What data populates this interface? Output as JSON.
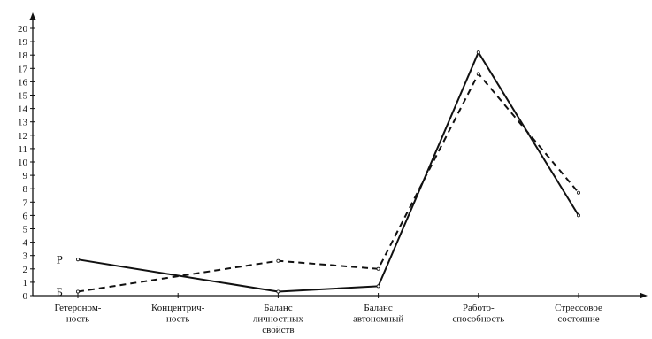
{
  "chart_data": {
    "type": "line",
    "title": "",
    "xlabel": "",
    "ylabel": "",
    "ylim": [
      0,
      20
    ],
    "yticks": [
      0,
      1,
      2,
      3,
      4,
      5,
      6,
      7,
      8,
      9,
      10,
      11,
      12,
      13,
      14,
      15,
      16,
      17,
      18,
      19,
      20
    ],
    "categories": [
      [
        "Гетероном-",
        "ность"
      ],
      [
        "Концентрич-",
        "ность"
      ],
      [
        "Баланс",
        "личностных",
        "свойств"
      ],
      [
        "Баланс",
        "автономный"
      ],
      [
        "Работо-",
        "способность"
      ],
      [
        "Стрессовое",
        "состояние"
      ]
    ],
    "series": [
      {
        "name": "Р",
        "style": "solid",
        "color": "#111111",
        "values": [
          2.7,
          null,
          0.3,
          0.7,
          18.2,
          6.0
        ]
      },
      {
        "name": "Б",
        "style": "dashed",
        "color": "#111111",
        "values": [
          0.3,
          null,
          2.6,
          2.0,
          16.6,
          7.7
        ]
      }
    ],
    "grid": false,
    "legend": "inline-left"
  }
}
